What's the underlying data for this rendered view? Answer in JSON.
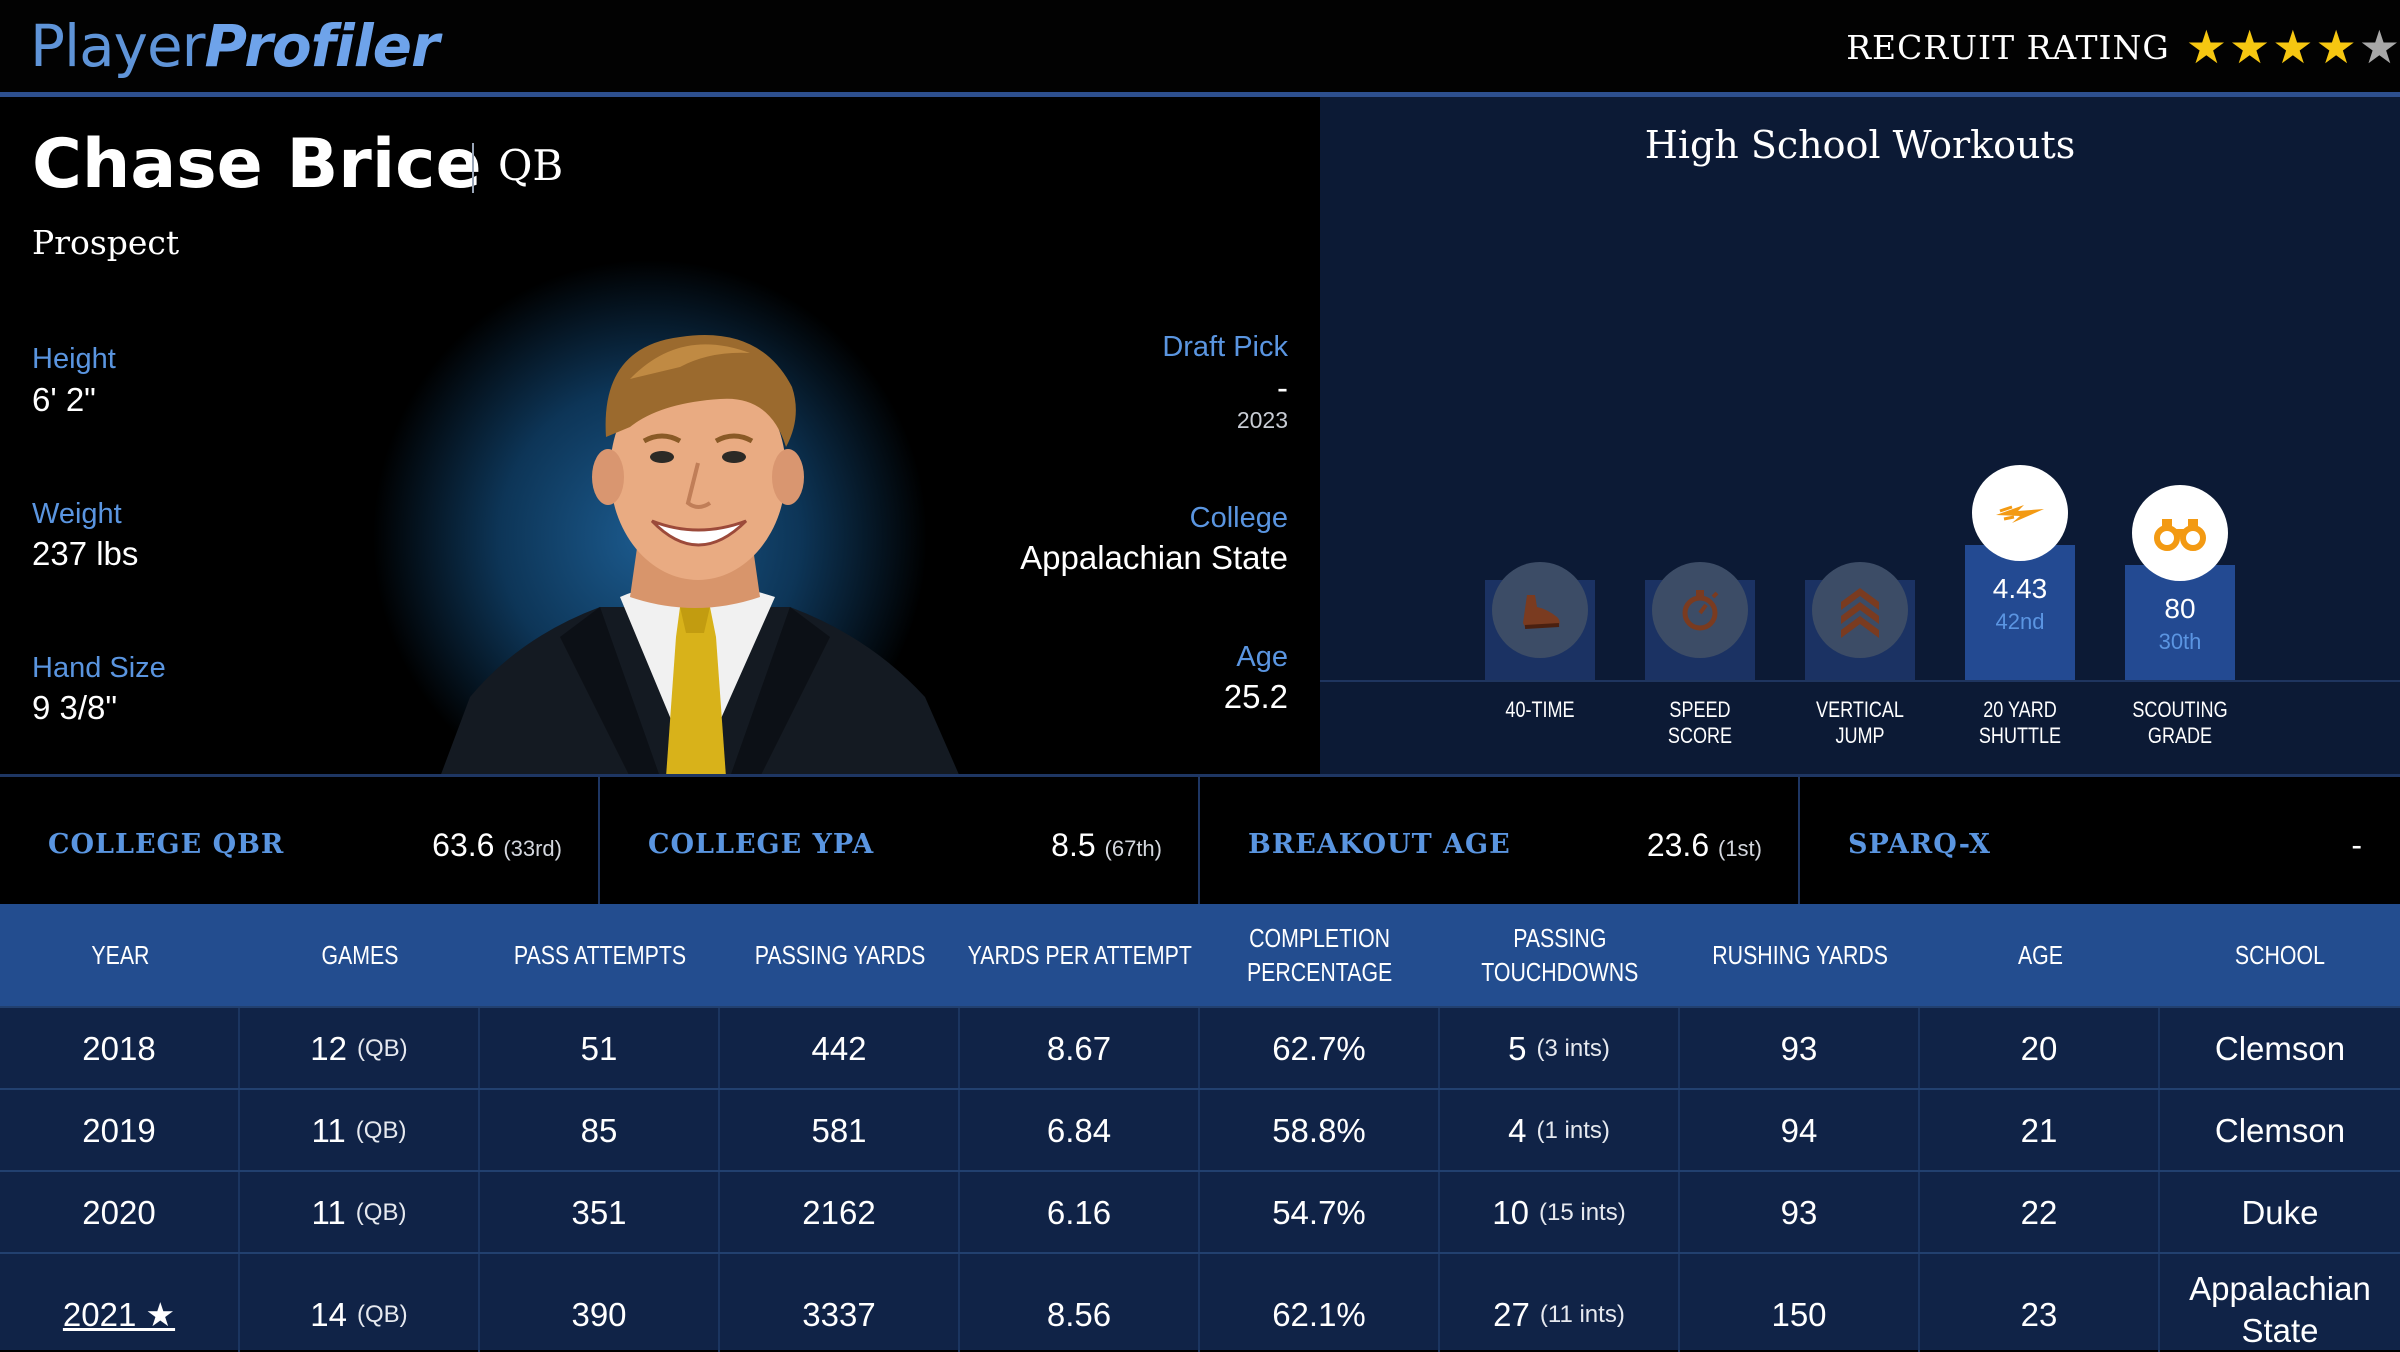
{
  "brand": {
    "part1": "Player",
    "part2": "Profiler"
  },
  "recruit": {
    "label": "RECRUIT RATING",
    "stars": 4,
    "max_stars": 5
  },
  "player": {
    "name": "Chase Brice",
    "position": "QB",
    "status": "Prospect",
    "height_label": "Height",
    "height": "6' 2\"",
    "weight_label": "Weight",
    "weight": "237 lbs",
    "hand_label": "Hand Size",
    "hand": "9 3/8\"",
    "draft_label": "Draft Pick",
    "draft_pick": "-",
    "draft_year": "2023",
    "college_label": "College",
    "college": "Appalachian State",
    "age_label": "Age",
    "age": "25.2"
  },
  "workouts": {
    "title": "High School Workouts",
    "items": [
      {
        "label1": "40-TIME",
        "label2": "",
        "value": "",
        "rank": "",
        "icon": "shoe-icon",
        "has_data": false
      },
      {
        "label1": "SPEED",
        "label2": "SCORE",
        "value": "",
        "rank": "",
        "icon": "stopwatch-icon",
        "has_data": false
      },
      {
        "label1": "VERTICAL",
        "label2": "JUMP",
        "value": "",
        "rank": "",
        "icon": "chevrons-up-icon",
        "has_data": false
      },
      {
        "label1": "20 YARD",
        "label2": "SHUTTLE",
        "value": "4.43",
        "rank": "42nd",
        "percentile": 42,
        "icon": "lightning-icon",
        "has_data": true
      },
      {
        "label1": "SCOUTING",
        "label2": "GRADE",
        "value": "80",
        "rank": "30th",
        "percentile": 30,
        "icon": "binoculars-icon",
        "has_data": true
      }
    ]
  },
  "metrics": [
    {
      "label": "COLLEGE QBR",
      "value": "63.6",
      "rank": "(33rd)"
    },
    {
      "label": "COLLEGE YPA",
      "value": "8.5",
      "rank": "(67th)"
    },
    {
      "label": "BREAKOUT AGE",
      "value": "23.6",
      "rank": "(1st)"
    },
    {
      "label": "SPARQ-X",
      "value": "-",
      "rank": ""
    }
  ],
  "table": {
    "headers": [
      [
        "YEAR"
      ],
      [
        "GAMES"
      ],
      [
        "PASS ATTEMPTS"
      ],
      [
        "PASSING YARDS"
      ],
      [
        "YARDS PER ATTEMPT"
      ],
      [
        "COMPLETION",
        "PERCENTAGE"
      ],
      [
        "PASSING",
        "TOUCHDOWNS"
      ],
      [
        "RUSHING YARDS"
      ],
      [
        "AGE"
      ],
      [
        "SCHOOL"
      ]
    ],
    "rows": [
      {
        "year": "2018",
        "games": "12",
        "games_pos": "(QB)",
        "attempts": "51",
        "yards": "442",
        "ypa": "8.67",
        "comp": "62.7%",
        "td": "5",
        "ints": "(3 ints)",
        "rush": "93",
        "age": "20",
        "school": "Clemson"
      },
      {
        "year": "2019",
        "games": "11",
        "games_pos": "(QB)",
        "attempts": "85",
        "yards": "581",
        "ypa": "6.84",
        "comp": "58.8%",
        "td": "4",
        "ints": "(1 ints)",
        "rush": "94",
        "age": "21",
        "school": "Clemson"
      },
      {
        "year": "2020",
        "games": "11",
        "games_pos": "(QB)",
        "attempts": "351",
        "yards": "2162",
        "ypa": "6.16",
        "comp": "54.7%",
        "td": "10",
        "ints": "(15 ints)",
        "rush": "93",
        "age": "22",
        "school": "Duke"
      },
      {
        "year": "2021 ★",
        "games": "14",
        "games_pos": "(QB)",
        "attempts": "390",
        "yards": "3337",
        "ypa": "8.56",
        "comp": "62.1%",
        "td": "27",
        "ints": "(11 ints)",
        "rush": "150",
        "age": "23",
        "school": "Appalachian State",
        "school_line1": "Appalachian",
        "school_line2": "State"
      }
    ]
  },
  "colors": {
    "accent": "#5a95e0",
    "header_blue": "#234d8f",
    "panel": "#0c1a35",
    "star": "#f6c711"
  }
}
